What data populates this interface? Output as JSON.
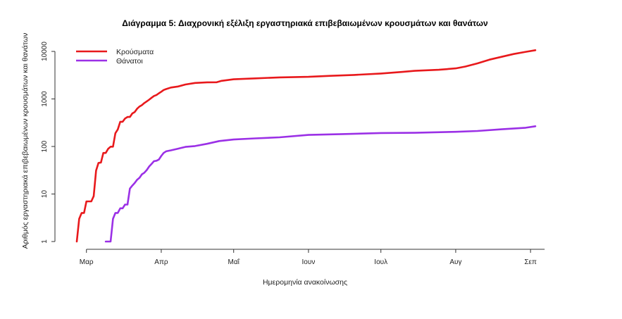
{
  "chart_data": {
    "type": "line",
    "title": "Διάγραμμα 5: Διαχρονική εξέλιξη εργαστηριακά επιβεβαιωμένων κρουσμάτων και θανάτων",
    "xlabel": "Ημερομηνία ανακοίνωσης",
    "ylabel": "Αριθμός εργαστηριακά επιβεβαιωμένων κρουσμάτων και θανάτων",
    "y_scale": "log",
    "ylim": [
      1,
      10000
    ],
    "y_ticks": [
      1,
      10,
      100,
      1000,
      10000
    ],
    "y_tick_labels": [
      "1",
      "10",
      "100",
      "1000",
      "10000"
    ],
    "x_range": [
      "2020-02-26",
      "2020-09-03"
    ],
    "x_ticks": [
      "2020-03-01",
      "2020-04-01",
      "2020-05-01",
      "2020-06-01",
      "2020-07-01",
      "2020-08-01",
      "2020-09-01"
    ],
    "x_tick_labels": [
      "Μαρ",
      "Απρ",
      "Μαΐ",
      "Ιουν",
      "Ιουλ",
      "Αυγ",
      "Σεπ"
    ],
    "grid": false,
    "legend_position": "top-left",
    "series": [
      {
        "name": "Κρούσματα",
        "color": "#e8191c",
        "points": [
          [
            "2020-02-26",
            1
          ],
          [
            "2020-02-27",
            3
          ],
          [
            "2020-02-28",
            4
          ],
          [
            "2020-02-29",
            4
          ],
          [
            "2020-03-01",
            7
          ],
          [
            "2020-03-02",
            7
          ],
          [
            "2020-03-03",
            7
          ],
          [
            "2020-03-04",
            9
          ],
          [
            "2020-03-05",
            31
          ],
          [
            "2020-03-06",
            45
          ],
          [
            "2020-03-07",
            46
          ],
          [
            "2020-03-08",
            73
          ],
          [
            "2020-03-09",
            73
          ],
          [
            "2020-03-10",
            89
          ],
          [
            "2020-03-11",
            99
          ],
          [
            "2020-03-12",
            99
          ],
          [
            "2020-03-13",
            190
          ],
          [
            "2020-03-14",
            228
          ],
          [
            "2020-03-15",
            331
          ],
          [
            "2020-03-16",
            331
          ],
          [
            "2020-03-17",
            387
          ],
          [
            "2020-03-18",
            418
          ],
          [
            "2020-03-19",
            418
          ],
          [
            "2020-03-20",
            495
          ],
          [
            "2020-03-21",
            530
          ],
          [
            "2020-03-22",
            624
          ],
          [
            "2020-03-23",
            695
          ],
          [
            "2020-03-24",
            743
          ],
          [
            "2020-03-25",
            821
          ],
          [
            "2020-03-26",
            892
          ],
          [
            "2020-03-27",
            966
          ],
          [
            "2020-03-28",
            1061
          ],
          [
            "2020-03-29",
            1156
          ],
          [
            "2020-03-30",
            1212
          ],
          [
            "2020-03-31",
            1314
          ],
          [
            "2020-04-01",
            1415
          ],
          [
            "2020-04-02",
            1544
          ],
          [
            "2020-04-03",
            1613
          ],
          [
            "2020-04-05",
            1735
          ],
          [
            "2020-04-08",
            1832
          ],
          [
            "2020-04-11",
            2011
          ],
          [
            "2020-04-15",
            2170
          ],
          [
            "2020-04-20",
            2235
          ],
          [
            "2020-04-24",
            2245
          ],
          [
            "2020-04-26",
            2400
          ],
          [
            "2020-05-01",
            2591
          ],
          [
            "2020-05-10",
            2710
          ],
          [
            "2020-05-20",
            2840
          ],
          [
            "2020-06-01",
            2920
          ],
          [
            "2020-06-10",
            3060
          ],
          [
            "2020-06-20",
            3200
          ],
          [
            "2020-07-01",
            3430
          ],
          [
            "2020-07-10",
            3700
          ],
          [
            "2020-07-15",
            3900
          ],
          [
            "2020-07-25",
            4100
          ],
          [
            "2020-08-01",
            4400
          ],
          [
            "2020-08-05",
            4800
          ],
          [
            "2020-08-10",
            5600
          ],
          [
            "2020-08-15",
            6700
          ],
          [
            "2020-08-20",
            7700
          ],
          [
            "2020-08-25",
            8800
          ],
          [
            "2020-08-30",
            9800
          ],
          [
            "2020-09-03",
            10600
          ]
        ]
      },
      {
        "name": "Θάνατοι",
        "color": "#9b30e6",
        "points": [
          [
            "2020-03-09",
            1
          ],
          [
            "2020-03-11",
            1
          ],
          [
            "2020-03-12",
            3
          ],
          [
            "2020-03-13",
            4
          ],
          [
            "2020-03-14",
            4
          ],
          [
            "2020-03-15",
            5
          ],
          [
            "2020-03-16",
            5
          ],
          [
            "2020-03-17",
            6
          ],
          [
            "2020-03-18",
            6
          ],
          [
            "2020-03-19",
            13
          ],
          [
            "2020-03-20",
            15
          ],
          [
            "2020-03-21",
            17
          ],
          [
            "2020-03-22",
            20
          ],
          [
            "2020-03-23",
            22
          ],
          [
            "2020-03-24",
            26
          ],
          [
            "2020-03-25",
            28
          ],
          [
            "2020-03-26",
            32
          ],
          [
            "2020-03-27",
            38
          ],
          [
            "2020-03-28",
            43
          ],
          [
            "2020-03-29",
            49
          ],
          [
            "2020-03-30",
            50
          ],
          [
            "2020-03-31",
            53
          ],
          [
            "2020-04-01",
            63
          ],
          [
            "2020-04-02",
            73
          ],
          [
            "2020-04-03",
            79
          ],
          [
            "2020-04-05",
            83
          ],
          [
            "2020-04-08",
            90
          ],
          [
            "2020-04-11",
            98
          ],
          [
            "2020-04-15",
            102
          ],
          [
            "2020-04-20",
            114
          ],
          [
            "2020-04-25",
            130
          ],
          [
            "2020-05-01",
            140
          ],
          [
            "2020-05-10",
            148
          ],
          [
            "2020-05-20",
            156
          ],
          [
            "2020-06-01",
            175
          ],
          [
            "2020-06-15",
            182
          ],
          [
            "2020-07-01",
            192
          ],
          [
            "2020-07-15",
            194
          ],
          [
            "2020-08-01",
            203
          ],
          [
            "2020-08-10",
            212
          ],
          [
            "2020-08-20",
            230
          ],
          [
            "2020-08-30",
            248
          ],
          [
            "2020-09-03",
            266
          ]
        ]
      }
    ]
  }
}
